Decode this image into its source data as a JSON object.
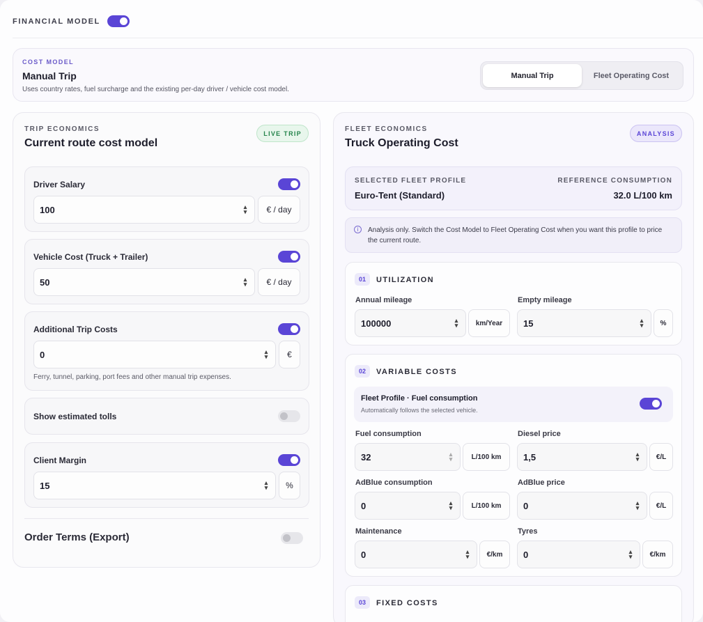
{
  "header": {
    "title": "FINANCIAL MODEL",
    "toggle_on": true
  },
  "cost_model": {
    "label": "COST MODEL",
    "title": "Manual Trip",
    "subtitle": "Uses country rates, fuel surcharge and the existing per-day driver / vehicle cost model.",
    "options": [
      "Manual Trip",
      "Fleet Operating Cost"
    ],
    "selected": "Manual Trip"
  },
  "trip": {
    "eyebrow": "TRIP ECONOMICS",
    "heading": "Current route cost model",
    "badge": "LIVE TRIP",
    "driver": {
      "label": "Driver Salary",
      "value": "100",
      "unit": "€ / day",
      "on": true
    },
    "vehicle": {
      "label": "Vehicle Cost (Truck + Trailer)",
      "value": "50",
      "unit": "€ / day",
      "on": true
    },
    "additional": {
      "label": "Additional Trip Costs",
      "value": "0",
      "unit": "€",
      "help": "Ferry, tunnel, parking, port fees and other manual trip expenses.",
      "on": true
    },
    "tolls": {
      "label": "Show estimated tolls",
      "on": false
    },
    "margin": {
      "label": "Client Margin",
      "value": "15",
      "unit": "%",
      "on": true
    },
    "order_terms": {
      "label": "Order Terms (Export)",
      "on": false
    }
  },
  "fleet": {
    "eyebrow": "FLEET ECONOMICS",
    "heading": "Truck Operating Cost",
    "badge": "ANALYSIS",
    "profile_label": "SELECTED FLEET PROFILE",
    "profile_value": "Euro-Tent (Standard)",
    "consumption_label": "REFERENCE CONSUMPTION",
    "consumption_value": "32.0 L/100 km",
    "info": "Analysis only. Switch the Cost Model to Fleet Operating Cost when you want this profile to price the current route.",
    "utilization": {
      "num": "01",
      "title": "UTILIZATION",
      "annual_label": "Annual mileage",
      "annual_value": "100000",
      "annual_unit": "km/Year",
      "empty_label": "Empty mileage",
      "empty_value": "15",
      "empty_unit": "%"
    },
    "variable": {
      "num": "02",
      "title": "VARIABLE COSTS",
      "fp_title": "Fleet Profile · Fuel consumption",
      "fp_sub": "Automatically follows the selected vehicle.",
      "fuel_label": "Fuel consumption",
      "fuel_value": "32",
      "fuel_unit": "L/100 km",
      "diesel_label": "Diesel price",
      "diesel_value": "1,5",
      "diesel_unit": "€/L",
      "adblue_label": "AdBlue consumption",
      "adblue_value": "0",
      "adblue_unit": "L/100 km",
      "adblue_price_label": "AdBlue price",
      "adblue_price_value": "0",
      "adblue_price_unit": "€/L",
      "maint_label": "Maintenance",
      "maint_value": "0",
      "maint_unit": "€/km",
      "tyres_label": "Tyres",
      "tyres_value": "0",
      "tyres_unit": "€/km"
    },
    "fixed": {
      "num": "03",
      "title": "FIXED COSTS"
    }
  }
}
